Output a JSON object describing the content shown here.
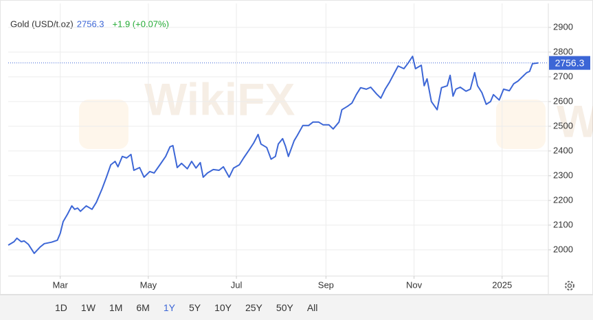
{
  "chart_data": {
    "type": "line",
    "series": [
      {
        "name": "Gold (USD/t.oz)",
        "color": "#3c66d6",
        "values": [
          2019,
          2033,
          2047,
          2033,
          2036,
          2022,
          1986,
          2011,
          2025,
          2031,
          2039,
          2067,
          2114,
          2144,
          2178,
          2164,
          2169,
          2156,
          2178,
          2164,
          2192,
          2247,
          2294,
          2344,
          2358,
          2336,
          2378,
          2372,
          2386,
          2322,
          2333,
          2294,
          2317,
          2311,
          2344,
          2378,
          2417,
          2422,
          2333,
          2350,
          2328,
          2358,
          2331,
          2353,
          2294,
          2311,
          2325,
          2322,
          2336,
          2294,
          2331,
          2344,
          2372,
          2406,
          2433,
          2467,
          2428,
          2414,
          2367,
          2378,
          2428,
          2450,
          2419,
          2378,
          2442,
          2461,
          2503,
          2503,
          2517,
          2517,
          2506,
          2506,
          2489,
          2517,
          2567,
          2581,
          2594,
          2628,
          2656,
          2650,
          2658,
          2631,
          2614,
          2650,
          2678,
          2711,
          2744,
          2733,
          2756,
          2783,
          2733,
          2747,
          2664,
          2692,
          2600,
          2567,
          2656,
          2664,
          2706,
          2622,
          2650,
          2658,
          2642,
          2650,
          2717,
          2664,
          2636,
          2589,
          2600,
          2628,
          2606,
          2650,
          2644,
          2672,
          2683,
          2700,
          2717,
          2722,
          2753,
          2756.3
        ]
      }
    ],
    "x": [
      0,
      4,
      6,
      9,
      11,
      14,
      18,
      22,
      25,
      30,
      34,
      36,
      38,
      41,
      44,
      46,
      48,
      50,
      54,
      58,
      61,
      65,
      68,
      71,
      74,
      76,
      79,
      82,
      85,
      87,
      91,
      94,
      98,
      101,
      105,
      109,
      112,
      114,
      117,
      120,
      124,
      127,
      130,
      133,
      135,
      138,
      142,
      146,
      149,
      153,
      156,
      160,
      163,
      167,
      170,
      173,
      175,
      179,
      182,
      185,
      187,
      190,
      192,
      194,
      198,
      200,
      204,
      208,
      211,
      215,
      218,
      222,
      225,
      229,
      231,
      235,
      238,
      241,
      244,
      248,
      251,
      255,
      258,
      261,
      264,
      267,
      270,
      274,
      277,
      280,
      282,
      286,
      288,
      290,
      293,
      297,
      300,
      304,
      306,
      308,
      310,
      313,
      317,
      320,
      323,
      325,
      328,
      331,
      334,
      336,
      340,
      343,
      347,
      350,
      353,
      356,
      359,
      361,
      363,
      367
    ],
    "xlim": [
      0,
      374
    ],
    "xticks": [
      {
        "value": 36,
        "label": "Mar"
      },
      {
        "value": 97,
        "label": "May"
      },
      {
        "value": 158,
        "label": "Jul"
      },
      {
        "value": 220,
        "label": "Sep"
      },
      {
        "value": 281,
        "label": "Nov"
      },
      {
        "value": 342,
        "label": "2025"
      }
    ],
    "ylim": [
      1894,
      2997
    ],
    "yticks": [
      2000,
      2100,
      2200,
      2300,
      2400,
      2500,
      2600,
      2700,
      2800,
      2900
    ],
    "grid": true,
    "last_price": 2756.3,
    "change_label": "+1.9 (+0.07%)",
    "watermark": "WikiFX",
    "range_buttons": [
      "1D",
      "1W",
      "1M",
      "6M",
      "1Y",
      "5Y",
      "10Y",
      "25Y",
      "50Y",
      "All"
    ],
    "active_range": "1Y"
  }
}
